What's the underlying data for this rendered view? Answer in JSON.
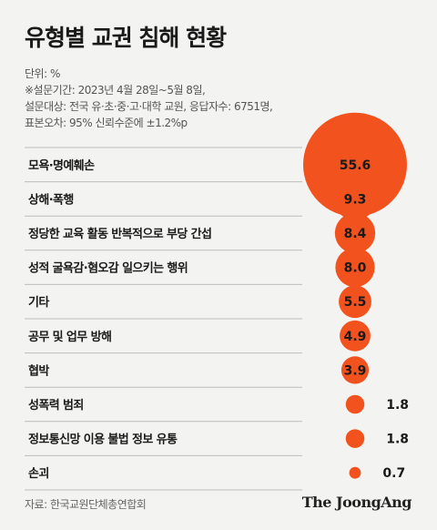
{
  "title": "유형별 교권 침해 현황",
  "notes": [
    "단위: %",
    "※설문기간: 2023년 4월 28일~5월 8일,",
    "설문대상: 전국 유·초·중·고·대학 교원, 응답자수: 6751명,",
    "표본오차: 95% 신뢰수준에 ±1.2%p"
  ],
  "source": "자료: 한국교원단체총연합회",
  "brand": "The JoongAng",
  "colors": {
    "bubble": "#f2521e",
    "divider": "#bdbdbd",
    "background": "#f3f3f1"
  },
  "chart_data": {
    "type": "bubble",
    "unit": "%",
    "categories": [
      "모욕·명예훼손",
      "상해·폭행",
      "정당한 교육 활동 반복적으로 부당 간섭",
      "성적 굴욕감·혐오감 일으키는 행위",
      "기타",
      "공무 및 업무 방해",
      "협박",
      "성폭력 범죄",
      "정보통신망 이용 불법 정보 유통",
      "손괴"
    ],
    "values": [
      55.6,
      9.3,
      8.4,
      8.0,
      5.5,
      4.9,
      3.9,
      1.8,
      1.8,
      0.7
    ],
    "value_labels": [
      "55.6",
      "9.3",
      "8.4",
      "8.0",
      "5.5",
      "4.9",
      "3.9",
      "1.8",
      "1.8",
      "0.7"
    ]
  }
}
